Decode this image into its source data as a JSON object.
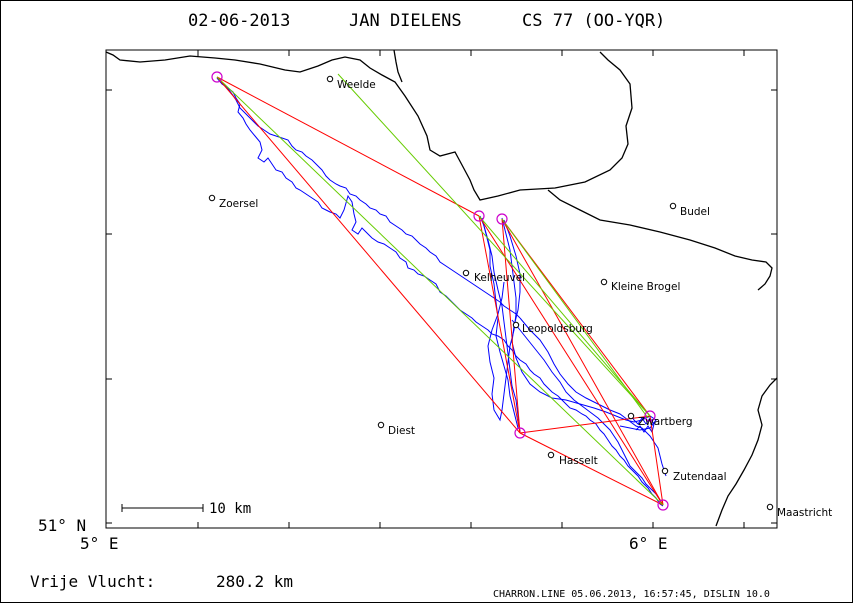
{
  "title": {
    "date": "02-06-2013",
    "pilot": "JAN DIELENS",
    "glider": "CS 77 (OO-YQR)"
  },
  "axes": {
    "lat_label": "51° N",
    "lon_labels": [
      "5° E",
      "6° E"
    ]
  },
  "scale_bar": {
    "label": "10 km"
  },
  "flight_info": {
    "label": "Vrije Vlucht:",
    "distance": "280.2 km"
  },
  "footer": "CHARRON.LINE 05.06.2013, 16:57:45, DISLIN 10.0",
  "colors": {
    "border": "#000000",
    "track": "#0000ff",
    "task_line": "#ff0000",
    "optimized_line": "#66cc00",
    "turnpoint": "#cc00cc"
  },
  "places": [
    {
      "name": "Weelde"
    },
    {
      "name": "Zoersel"
    },
    {
      "name": "Budel"
    },
    {
      "name": "Kleine Brogel"
    },
    {
      "name": "Kelheuvel"
    },
    {
      "name": "Leopoldsburg"
    },
    {
      "name": "Diest"
    },
    {
      "name": "Zwartberg"
    },
    {
      "name": "Hasselt"
    },
    {
      "name": "Zutendaal"
    },
    {
      "name": "Maastricht"
    }
  ]
}
